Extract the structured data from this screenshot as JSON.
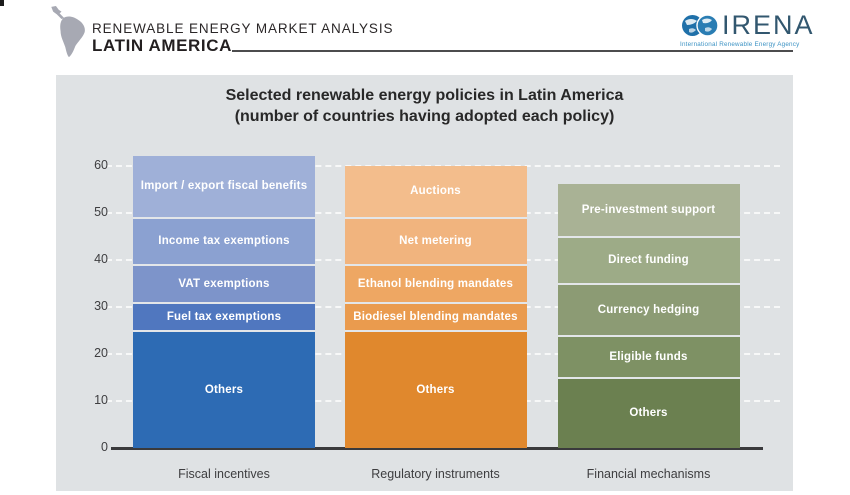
{
  "header": {
    "report_title": "RENEWABLE ENERGY MARKET ANALYSIS",
    "report_subtitle": "LATIN AMERICA",
    "logo_text": "IRENA",
    "logo_subtext": "International Renewable Energy Agency",
    "map_icon": "latin-america-silhouette-icon",
    "logo_icon": "irena-twin-globes-icon"
  },
  "colors": {
    "panel_background": "#dfe2e4",
    "axis": "#3a3a3c",
    "header_rule": "#4c4c4e",
    "logo_blue": "#1f70a9",
    "logo_navy": "#32576f",
    "map_gray": "#a7a9b3"
  },
  "chart_data": {
    "type": "bar",
    "stacked": true,
    "title": "Selected renewable energy policies in Latin America",
    "subtitle": "(number of countries having adopted each policy)",
    "ylabel": "",
    "xlabel": "",
    "ylim": [
      0,
      60
    ],
    "yticks": [
      0,
      10,
      20,
      30,
      40,
      50,
      60
    ],
    "grid": "dashed horizontal, white",
    "legend": "none (labels inside segments)",
    "categories": [
      "Fiscal incentives",
      "Regulatory instruments",
      "Financial mechanisms"
    ],
    "bars": [
      {
        "category": "Fiscal incentives",
        "total": 62,
        "segments": [
          {
            "label": "Others",
            "value": 25,
            "color": "#2d6bb4"
          },
          {
            "label": "Fuel tax exemptions",
            "value": 6,
            "color": "#5077bf"
          },
          {
            "label": "VAT exemptions",
            "value": 8,
            "color": "#7d94ca"
          },
          {
            "label": "Income tax exemptions",
            "value": 10,
            "color": "#8ba1d1"
          },
          {
            "label": "Import / export fiscal benefits",
            "value": 13,
            "color": "#9fb0d8"
          }
        ]
      },
      {
        "category": "Regulatory instruments",
        "total": 60,
        "segments": [
          {
            "label": "Others",
            "value": 25,
            "color": "#e0882d"
          },
          {
            "label": "Biodiesel blending mandates",
            "value": 6,
            "color": "#ea9b4e"
          },
          {
            "label": "Ethanol blending mandates",
            "value": 8,
            "color": "#eea763"
          },
          {
            "label": "Net metering",
            "value": 10,
            "color": "#f1b47e"
          },
          {
            "label": "Auctions",
            "value": 11,
            "color": "#f3bd8c"
          }
        ]
      },
      {
        "category": "Financial mechanisms",
        "total": 56,
        "segments": [
          {
            "label": "Others",
            "value": 15,
            "color": "#6b8050"
          },
          {
            "label": "Eligible funds",
            "value": 9,
            "color": "#7e9164"
          },
          {
            "label": "Currency hedging",
            "value": 11,
            "color": "#8c9b74"
          },
          {
            "label": "Direct funding",
            "value": 10,
            "color": "#9dab87"
          },
          {
            "label": "Pre-investment support",
            "value": 11,
            "color": "#a9b295"
          }
        ]
      }
    ]
  }
}
